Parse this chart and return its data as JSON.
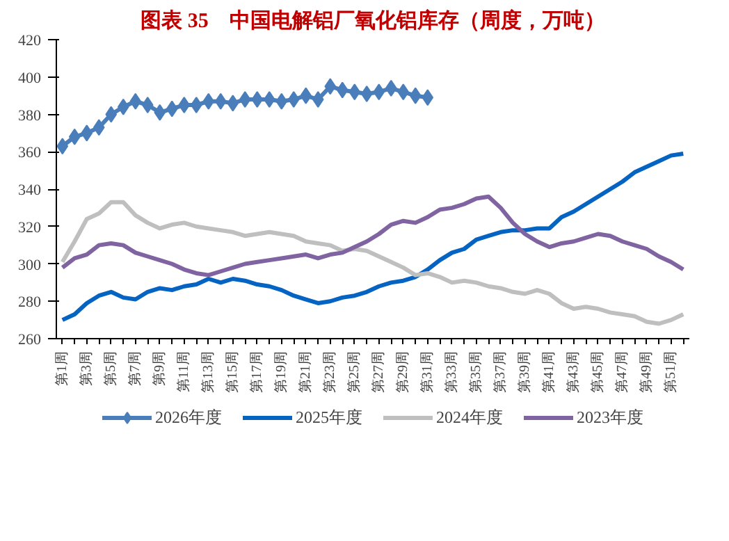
{
  "chart_data": {
    "type": "line",
    "title": "图表 35　中国电解铝厂氧化铝库存（周度，万吨）",
    "categories": [
      "第1周",
      null,
      "第3周",
      null,
      "第5周",
      null,
      "第7周",
      null,
      "第9周",
      null,
      "第11周",
      null,
      "第13周",
      null,
      "第15周",
      null,
      "第17周",
      null,
      "第19周",
      null,
      "第21周",
      null,
      "第23周",
      null,
      "第25周",
      null,
      "第27周",
      null,
      "第29周",
      null,
      "第31周",
      null,
      "第33周",
      null,
      "第35周",
      null,
      "第37周",
      null,
      "第39周",
      null,
      "第41周",
      null,
      "第43周",
      null,
      "第45周",
      null,
      "第47周",
      null,
      "第49周",
      null,
      "第51周",
      null
    ],
    "series": [
      {
        "name": "2026年度",
        "color": "#4a7ebb",
        "marker": "diamond",
        "values": [
          363,
          368,
          370,
          373,
          380,
          384,
          387,
          385,
          381,
          383,
          385,
          385,
          387,
          387,
          386,
          388,
          388,
          388,
          387,
          388,
          390,
          388,
          395,
          393,
          392,
          391,
          392,
          394,
          392,
          390,
          389,
          null,
          null,
          null,
          null,
          null,
          null,
          null,
          null,
          null,
          null,
          null,
          null,
          null,
          null,
          null,
          null,
          null,
          null,
          null,
          null,
          null
        ]
      },
      {
        "name": "2025年度",
        "color": "#0563c1",
        "values": [
          270,
          273,
          279,
          283,
          285,
          282,
          281,
          285,
          287,
          286,
          288,
          289,
          292,
          290,
          292,
          291,
          289,
          288,
          286,
          283,
          281,
          279,
          280,
          282,
          283,
          285,
          288,
          290,
          291,
          293,
          297,
          302,
          306,
          308,
          313,
          315,
          317,
          318,
          318,
          319,
          319,
          325,
          328,
          332,
          336,
          340,
          344,
          349,
          352,
          355,
          358,
          359
        ]
      },
      {
        "name": "2024年度",
        "color": "#bfbfbf",
        "values": [
          301,
          312,
          324,
          327,
          333,
          333,
          326,
          322,
          319,
          321,
          322,
          320,
          319,
          318,
          317,
          315,
          316,
          317,
          316,
          315,
          312,
          311,
          310,
          307,
          308,
          307,
          304,
          301,
          298,
          294,
          295,
          293,
          290,
          291,
          290,
          288,
          287,
          285,
          284,
          286,
          284,
          279,
          276,
          277,
          276,
          274,
          273,
          272,
          269,
          268,
          270,
          273
        ]
      },
      {
        "name": "2023年度",
        "color": "#8064a2",
        "values": [
          298,
          303,
          305,
          310,
          311,
          310,
          306,
          304,
          302,
          300,
          297,
          295,
          294,
          296,
          298,
          300,
          301,
          302,
          303,
          304,
          305,
          303,
          305,
          306,
          309,
          312,
          316,
          321,
          323,
          322,
          325,
          329,
          330,
          332,
          335,
          336,
          330,
          322,
          316,
          312,
          309,
          311,
          312,
          314,
          316,
          315,
          312,
          310,
          308,
          304,
          301,
          297
        ]
      }
    ],
    "ylim": [
      260,
      420
    ],
    "yticks": [
      260,
      280,
      300,
      320,
      340,
      360,
      380,
      400,
      420
    ],
    "grid": false,
    "legend": "bottom",
    "marker": "none",
    "line_style": "solid"
  }
}
